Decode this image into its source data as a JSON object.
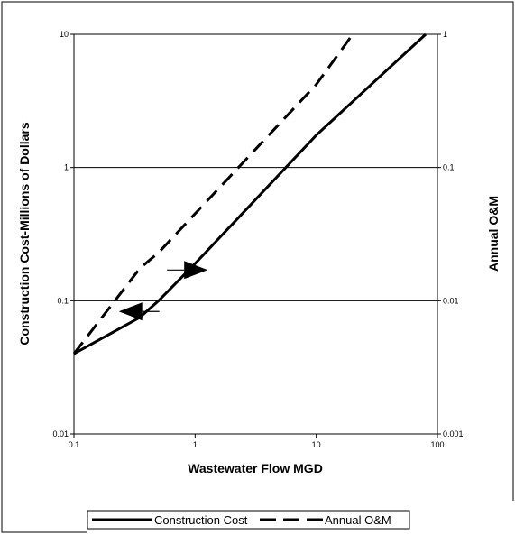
{
  "chart_data": {
    "type": "line",
    "xlabel": "Wastewater Flow MGD",
    "ylabel": "Construction Cost-Millions of Dollars",
    "y2label": "Annual O&M",
    "xscale": "log",
    "yscale": "log",
    "y2scale": "log",
    "xlim": [
      0.1,
      100
    ],
    "ylim": [
      0.01,
      10
    ],
    "y2lim": [
      0.001,
      1
    ],
    "x_ticks": [
      "0.1",
      "1",
      "10",
      "100"
    ],
    "y_ticks": [
      "0.01",
      "0.1",
      "1",
      "10"
    ],
    "y2_ticks": [
      "0.001",
      "0.01",
      "0.1",
      "1"
    ],
    "grid": "horizontal major",
    "legend_position": "bottom",
    "series": [
      {
        "name": "Construction Cost",
        "axis": "left",
        "style": "solid",
        "x": [
          0.1,
          0.35,
          0.5,
          1,
          10,
          80
        ],
        "y": [
          0.04,
          0.075,
          0.1,
          0.19,
          1.75,
          10
        ]
      },
      {
        "name": "Annual O&M",
        "axis": "right",
        "style": "dashed",
        "x": [
          0.1,
          0.35,
          0.5,
          1,
          10,
          20
        ],
        "y": [
          0.004,
          0.0175,
          0.023,
          0.045,
          0.42,
          1
        ]
      }
    ],
    "annotations": [
      {
        "type": "arrow",
        "points_to": "left axis",
        "near_series": "Construction Cost",
        "x": 0.33,
        "y": 0.083
      },
      {
        "type": "arrow",
        "points_to": "right axis",
        "near_series": "Annual O&M",
        "x": 0.9,
        "y": 0.017
      }
    ]
  }
}
